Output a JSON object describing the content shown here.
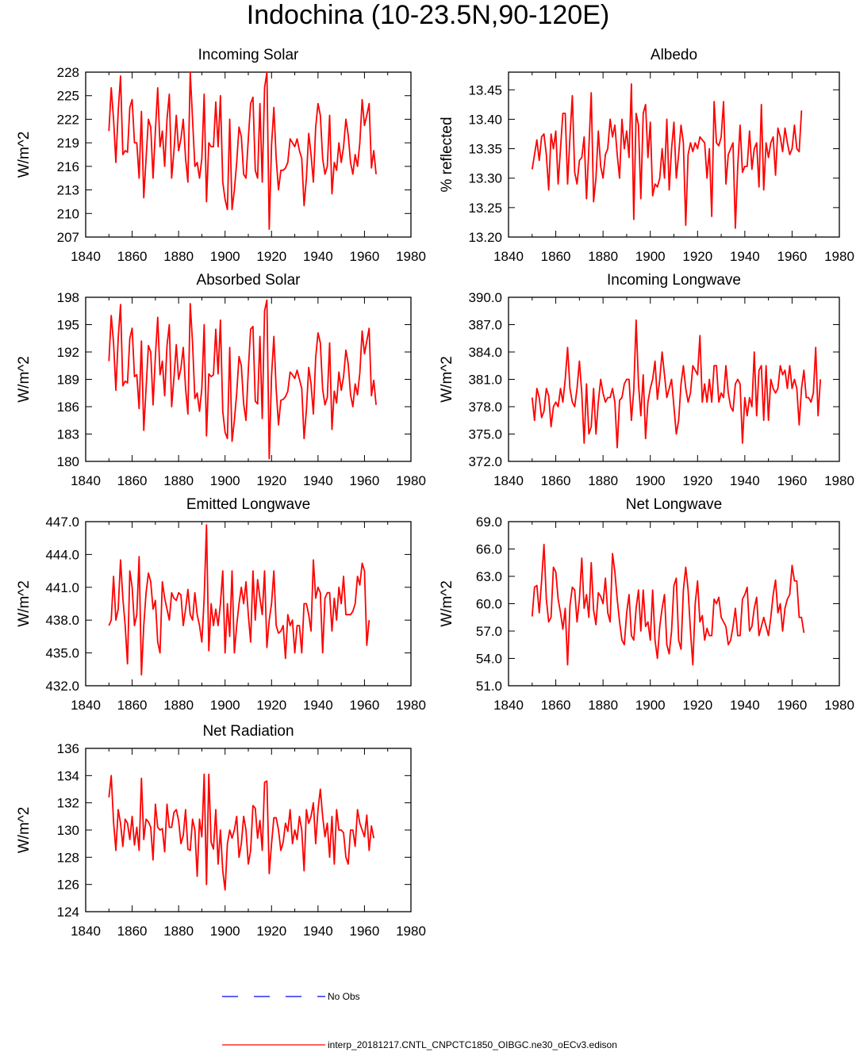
{
  "page": {
    "title": "Indochina (10-23.5N,90-120E)"
  },
  "legend": {
    "items": [
      {
        "label": "No Obs",
        "color": "#0000ff",
        "style": "dashed"
      },
      {
        "label": "interp_20181217.CNTL_CNPCTC1850_OIBGC.ne30_oECv3.edison",
        "color": "#ff0000",
        "style": "solid"
      }
    ]
  },
  "chart_data": [
    {
      "type": "line",
      "title": "Incoming Solar",
      "ylabel": "W/m^2",
      "xlim": [
        1840,
        1980
      ],
      "xticks": [
        "1840",
        "1860",
        "1880",
        "1900",
        "1920",
        "1940",
        "1960",
        "1980"
      ],
      "ylim": [
        207,
        228
      ],
      "yticks": [
        "207",
        "210",
        "213",
        "216",
        "219",
        "222",
        "225",
        "228"
      ],
      "x_start": 1850,
      "series": [
        {
          "color": "#ff0000",
          "values": [
            220.5,
            226,
            222,
            216.5,
            223,
            227.5,
            217.5,
            218,
            217.8,
            223.5,
            224.5,
            219,
            219,
            214.5,
            223,
            212,
            217,
            222,
            221,
            214.5,
            220.5,
            226,
            218.5,
            220.5,
            216,
            222,
            225.2,
            214.5,
            218,
            222.5,
            218,
            219.5,
            222,
            217,
            214,
            228,
            222,
            216,
            216.5,
            214.5,
            217,
            225.2,
            211.5,
            219,
            218.5,
            218.5,
            224.2,
            218.5,
            225,
            214,
            211.8,
            210.5,
            222,
            210.5,
            213,
            216.5,
            221,
            219.8,
            215,
            214.5,
            219.5,
            224,
            224.8,
            215.5,
            214.5,
            224,
            214,
            226,
            228,
            208,
            218.7,
            223.5,
            217,
            213,
            215.5,
            215.5,
            215.8,
            216.5,
            219.5,
            219,
            218.5,
            219.5,
            218,
            217,
            211,
            214.5,
            220.2,
            217.5,
            214,
            221,
            224,
            222.5,
            217,
            215,
            216,
            222.5,
            212.5,
            216.5,
            215.5,
            219,
            216.5,
            218.5,
            222,
            220,
            216.5,
            215,
            217.5,
            216,
            219,
            224.5,
            221.2,
            222.5,
            224,
            215.8,
            218,
            215
          ]
        }
      ]
    },
    {
      "type": "line",
      "title": "Albedo",
      "ylabel": "% reflected",
      "xlim": [
        1840,
        1980
      ],
      "xticks": [
        "1840",
        "1860",
        "1880",
        "1900",
        "1920",
        "1940",
        "1960",
        "1980"
      ],
      "ylim": [
        13.2,
        13.48
      ],
      "yticks": [
        "13.20",
        "13.25",
        "13.30",
        "13.35",
        "13.40",
        "13.45"
      ],
      "x_start": 1850,
      "series": [
        {
          "color": "#ff0000",
          "values": [
            13.315,
            13.34,
            13.365,
            13.33,
            13.37,
            13.375,
            13.34,
            13.28,
            13.375,
            13.35,
            13.38,
            13.29,
            13.35,
            13.41,
            13.41,
            13.29,
            13.37,
            13.44,
            13.31,
            13.29,
            13.33,
            13.335,
            13.37,
            13.265,
            13.35,
            13.445,
            13.26,
            13.3,
            13.38,
            13.32,
            13.3,
            13.34,
            13.35,
            13.4,
            13.37,
            13.39,
            13.34,
            13.3,
            13.4,
            13.35,
            13.38,
            13.335,
            13.46,
            13.23,
            13.41,
            13.39,
            13.265,
            13.41,
            13.425,
            13.335,
            13.395,
            13.27,
            13.29,
            13.285,
            13.3,
            13.35,
            13.3,
            13.4,
            13.28,
            13.35,
            13.395,
            13.3,
            13.34,
            13.39,
            13.36,
            13.22,
            13.34,
            13.36,
            13.345,
            13.36,
            13.35,
            13.37,
            13.365,
            13.36,
            13.3,
            13.35,
            13.235,
            13.43,
            13.36,
            13.355,
            13.37,
            13.43,
            13.29,
            13.34,
            13.35,
            13.36,
            13.215,
            13.32,
            13.39,
            13.31,
            13.32,
            13.32,
            13.38,
            13.315,
            13.35,
            13.36,
            13.285,
            13.425,
            13.28,
            13.36,
            13.335,
            13.36,
            13.37,
            13.305,
            13.385,
            13.37,
            13.345,
            13.385,
            13.36,
            13.34,
            13.35,
            13.39,
            13.35,
            13.345,
            13.415
          ]
        }
      ]
    },
    {
      "type": "line",
      "title": "Absorbed Solar",
      "ylabel": "W/m^2",
      "xlim": [
        1840,
        1980
      ],
      "xticks": [
        "1840",
        "1860",
        "1880",
        "1900",
        "1920",
        "1940",
        "1960",
        "1980"
      ],
      "ylim": [
        180,
        198
      ],
      "yticks": [
        "180",
        "183",
        "186",
        "189",
        "192",
        "195",
        "198"
      ],
      "x_start": 1850,
      "series": [
        {
          "color": "#ff0000",
          "values": [
            191,
            196,
            193,
            187.8,
            193.5,
            197.2,
            188.3,
            188.8,
            188.6,
            193.5,
            194.6,
            189.3,
            189.5,
            185.8,
            193.2,
            183.4,
            188,
            192.7,
            192,
            186.2,
            191.5,
            195.8,
            189.5,
            191,
            187.2,
            192.7,
            195,
            186,
            189.2,
            192.8,
            189,
            190.2,
            192.5,
            188,
            185.2,
            197.3,
            193,
            186.9,
            187.5,
            185.5,
            188,
            195,
            182.8,
            189.6,
            189.3,
            189.5,
            194.5,
            189.6,
            195.5,
            185.5,
            183.2,
            182.5,
            192.5,
            182.2,
            184.5,
            187.5,
            191.5,
            190.5,
            186.3,
            184.5,
            190,
            194.5,
            194.8,
            186.6,
            186.3,
            193.7,
            184.7,
            196.5,
            197.7,
            180.3,
            189.4,
            193.7,
            187.9,
            184,
            186.7,
            186.8,
            187.1,
            187.7,
            189.8,
            189.5,
            189.1,
            190,
            189,
            188,
            182.5,
            185.6,
            190.3,
            188.5,
            185.2,
            191.4,
            194.1,
            193,
            187.9,
            186.2,
            187,
            193,
            183.5,
            187.7,
            186.4,
            189.8,
            187.8,
            189.3,
            192.2,
            190.7,
            187.3,
            186,
            188.5,
            187.3,
            189.7,
            194.3,
            191.8,
            193.2,
            194.6,
            187.2,
            188.9,
            186.2
          ]
        }
      ]
    },
    {
      "type": "line",
      "title": "Incoming Longwave",
      "ylabel": "W/m^2",
      "xlim": [
        1840,
        1980
      ],
      "xticks": [
        "1840",
        "1860",
        "1880",
        "1900",
        "1920",
        "1940",
        "1960",
        "1980"
      ],
      "ylim": [
        372,
        390
      ],
      "yticks": [
        "372.0",
        "375.0",
        "378.0",
        "381.0",
        "384.0",
        "387.0",
        "390.0"
      ],
      "x_start": 1850,
      "series": [
        {
          "color": "#ff0000",
          "values": [
            379,
            376.5,
            380,
            379,
            376.8,
            377.5,
            380,
            379.2,
            375.8,
            378,
            378.5,
            378,
            380,
            378.5,
            381,
            384.5,
            380,
            378.5,
            378,
            380,
            383,
            379.5,
            374,
            380.5,
            375,
            375.8,
            380,
            375,
            378.5,
            381,
            379.5,
            378.5,
            379,
            379,
            380,
            378.5,
            373.5,
            378.7,
            379,
            380.5,
            381,
            381,
            376.5,
            379.8,
            387.5,
            380.5,
            377,
            381.5,
            374.5,
            378.5,
            380,
            381,
            383,
            378.8,
            381,
            384,
            381.5,
            379,
            380,
            381,
            378,
            375,
            376.5,
            380.5,
            382.5,
            380,
            378.5,
            379.5,
            382.5,
            382,
            381.5,
            385.8,
            378.5,
            380.5,
            378.5,
            381,
            378.5,
            382.5,
            382.5,
            378.5,
            379.5,
            379,
            382.5,
            379.5,
            378,
            377.5,
            380.5,
            381,
            380.5,
            374,
            379,
            377,
            379,
            378,
            384,
            377,
            382,
            382.5,
            376.5,
            382.5,
            376.5,
            381,
            380,
            379.5,
            380,
            382.5,
            381.5,
            382,
            380,
            382.5,
            380,
            381,
            380,
            376,
            380,
            382,
            379,
            379,
            378.5,
            379.5,
            384.5,
            377,
            381
          ]
        }
      ]
    },
    {
      "type": "line",
      "title": "Emitted Longwave",
      "ylabel": "W/m^2",
      "xlim": [
        1840,
        1980
      ],
      "xticks": [
        "1840",
        "1860",
        "1880",
        "1900",
        "1920",
        "1940",
        "1960",
        "1980"
      ],
      "ylim": [
        432,
        447
      ],
      "yticks": [
        "432.0",
        "435.0",
        "438.0",
        "441.0",
        "444.0",
        "447.0"
      ],
      "x_start": 1850,
      "series": [
        {
          "color": "#ff0000",
          "values": [
            437.5,
            438,
            442,
            438,
            439,
            443.5,
            440,
            437.5,
            434,
            442.5,
            441,
            437.5,
            438.5,
            443.8,
            433,
            437.5,
            440.5,
            442.3,
            441.5,
            439,
            439.8,
            436,
            435,
            441.5,
            440,
            439,
            438,
            440.5,
            440,
            439.8,
            440.5,
            440.3,
            437.5,
            439,
            440.8,
            438.5,
            438,
            440.5,
            438.5,
            437.5,
            436,
            440,
            446.7,
            435.2,
            439.5,
            437.5,
            439,
            437.5,
            439.5,
            442.5,
            435,
            439.5,
            436.5,
            442.5,
            435,
            437.5,
            439.5,
            441,
            439.5,
            441.5,
            438.5,
            436,
            442.5,
            438,
            441.7,
            440,
            438.5,
            442.5,
            435.5,
            438,
            439.5,
            442.5,
            437.5,
            436.8,
            437,
            437.5,
            434.5,
            438.5,
            437.5,
            438,
            435,
            437.5,
            437.5,
            435,
            439.5,
            439.5,
            438.5,
            437,
            443.5,
            440,
            441,
            440.5,
            435,
            440,
            440.5,
            440.5,
            437,
            440,
            438,
            441,
            439.5,
            442,
            438.5,
            438.5,
            438.5,
            438.8,
            439.5,
            442,
            441.2,
            443.2,
            442.5,
            435.7,
            438
          ]
        }
      ]
    },
    {
      "type": "line",
      "title": "Net Longwave",
      "ylabel": "W/m^2",
      "xlim": [
        1840,
        1980
      ],
      "xticks": [
        "1840",
        "1860",
        "1880",
        "1900",
        "1920",
        "1940",
        "1960",
        "1980"
      ],
      "ylim": [
        51,
        69
      ],
      "yticks": [
        "51.0",
        "54.0",
        "57.0",
        "60.0",
        "63.0",
        "66.0",
        "69.0"
      ],
      "x_start": 1850,
      "series": [
        {
          "color": "#ff0000",
          "values": [
            58.6,
            61.8,
            62,
            59,
            62.5,
            66.5,
            60.5,
            58,
            58.5,
            64,
            63.5,
            60.5,
            59,
            57.2,
            59.5,
            53.3,
            59.8,
            61.8,
            61.5,
            58,
            60.5,
            65,
            59.5,
            61,
            58.5,
            64.5,
            59.3,
            57.7,
            61.2,
            60.8,
            60,
            62.8,
            59,
            58,
            65.5,
            63.5,
            60.5,
            58,
            56,
            55.5,
            59,
            61,
            56.5,
            56,
            59.5,
            61.5,
            57,
            61.5,
            57.5,
            58,
            56,
            61.5,
            56,
            54,
            57.5,
            59.5,
            61,
            55.5,
            54.5,
            57,
            62,
            62.8,
            56,
            55,
            61.5,
            64,
            61.5,
            57,
            53.3,
            60,
            62.5,
            58,
            58.7,
            56,
            57.3,
            56.5,
            56.5,
            60.5,
            60,
            60.7,
            58.5,
            58,
            57.5,
            55.5,
            56,
            57.5,
            59.5,
            56.5,
            56.5,
            60.5,
            61,
            61.8,
            57,
            57.5,
            59.5,
            60.7,
            56.5,
            57.5,
            58.5,
            57.5,
            56.5,
            58.5,
            61,
            62.6,
            59,
            60,
            57,
            59.5,
            60.5,
            61,
            64.2,
            62.5,
            62.5,
            58.5,
            58.5,
            56.8
          ]
        }
      ]
    },
    {
      "type": "line",
      "title": "Net Radiation",
      "ylabel": "W/m^2",
      "xlim": [
        1840,
        1980
      ],
      "xticks": [
        "1840",
        "1860",
        "1880",
        "1900",
        "1920",
        "1940",
        "1960",
        "1980"
      ],
      "ylim": [
        124,
        136
      ],
      "yticks": [
        "124",
        "126",
        "128",
        "130",
        "132",
        "134",
        "136"
      ],
      "x_start": 1850,
      "series": [
        {
          "color": "#ff0000",
          "values": [
            132.4,
            134,
            130.6,
            128.5,
            131.5,
            130.5,
            128.8,
            130.8,
            130.5,
            129.3,
            131,
            128.9,
            130.2,
            128.5,
            133.8,
            129.3,
            130.8,
            130.6,
            130.2,
            127.8,
            131.9,
            130.2,
            130,
            130.1,
            128.4,
            131.9,
            130.2,
            130.2,
            131.3,
            131.5,
            130.7,
            129,
            129.6,
            131.5,
            128.6,
            128.5,
            130.8,
            130,
            126.6,
            130.8,
            129.5,
            134.1,
            126,
            134.1,
            129.1,
            128.6,
            131.5,
            127.5,
            130,
            127,
            125.6,
            129,
            130,
            129.4,
            130,
            131,
            128,
            129,
            131,
            130,
            127.5,
            128.5,
            131.8,
            131.6,
            129.4,
            130.7,
            128.5,
            133.5,
            133.6,
            126.8,
            129,
            130.9,
            130.9,
            130,
            128.5,
            129.1,
            130.5,
            129.9,
            131.5,
            129,
            130,
            129.3,
            131,
            130,
            127,
            131.5,
            130.5,
            131,
            132,
            129,
            131.5,
            133,
            131,
            129.5,
            130.5,
            128,
            131,
            127.5,
            131.5,
            130,
            130,
            129.8,
            128,
            127.5,
            130,
            130,
            128.8,
            131.5,
            130.5,
            130,
            129.5,
            131.1,
            128.5,
            130.3,
            129.4
          ]
        }
      ]
    }
  ]
}
